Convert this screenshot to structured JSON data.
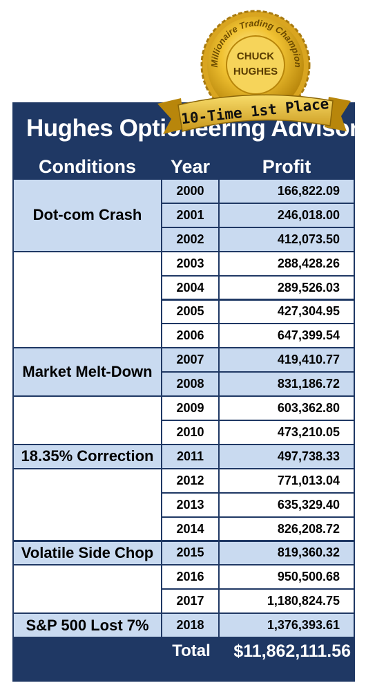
{
  "title": "Hughes Optioneering Advisory",
  "badge": {
    "arc_text": "Millionaire Trading Champion",
    "name_lines": [
      "CHUCK",
      "HUGHES"
    ],
    "ribbon": "10-Time 1st Place"
  },
  "table": {
    "header": [
      "Conditions",
      "Year",
      "Profit"
    ],
    "groups": [
      {
        "condition": "Dot-com Crash",
        "highlight": true,
        "rows": [
          [
            "2000",
            "166,822.09"
          ],
          [
            "2001",
            "246,018.00"
          ],
          [
            "2002",
            "412,073.50"
          ]
        ]
      },
      {
        "highlight": false,
        "rows": [
          [
            "2003",
            "288,428.26"
          ],
          [
            "2004",
            "289,526.03"
          ],
          [
            "2005",
            "427,304.95"
          ],
          [
            "2006",
            "647,399.54"
          ]
        ]
      },
      {
        "condition": "Market Melt-Down",
        "highlight": true,
        "rows": [
          [
            "2007",
            "419,410.77"
          ],
          [
            "2008",
            "831,186.72"
          ]
        ]
      },
      {
        "highlight": false,
        "rows": [
          [
            "2009",
            "603,362.80"
          ],
          [
            "2010",
            "473,210.05"
          ]
        ]
      },
      {
        "condition": "18.35% Correction",
        "highlight": true,
        "rows": [
          [
            "2011",
            "497,738.33"
          ]
        ]
      },
      {
        "highlight": false,
        "rows": [
          [
            "2012",
            "771,013.04"
          ],
          [
            "2013",
            "635,329.40"
          ],
          [
            "2014",
            "826,208.72"
          ]
        ]
      },
      {
        "condition": "Volatile Side Chop",
        "highlight": true,
        "rows": [
          [
            "2015",
            "819,360.32"
          ]
        ]
      },
      {
        "highlight": false,
        "rows": [
          [
            "2016",
            "950,500.68"
          ],
          [
            "2017",
            "1,180,824.75"
          ]
        ]
      },
      {
        "condition": "S&P 500 Lost 7%",
        "highlight": true,
        "rows": [
          [
            "2018",
            "1,376,393.61"
          ]
        ]
      }
    ],
    "total": {
      "label": "Total",
      "value": "$11,862,111.56"
    }
  }
}
